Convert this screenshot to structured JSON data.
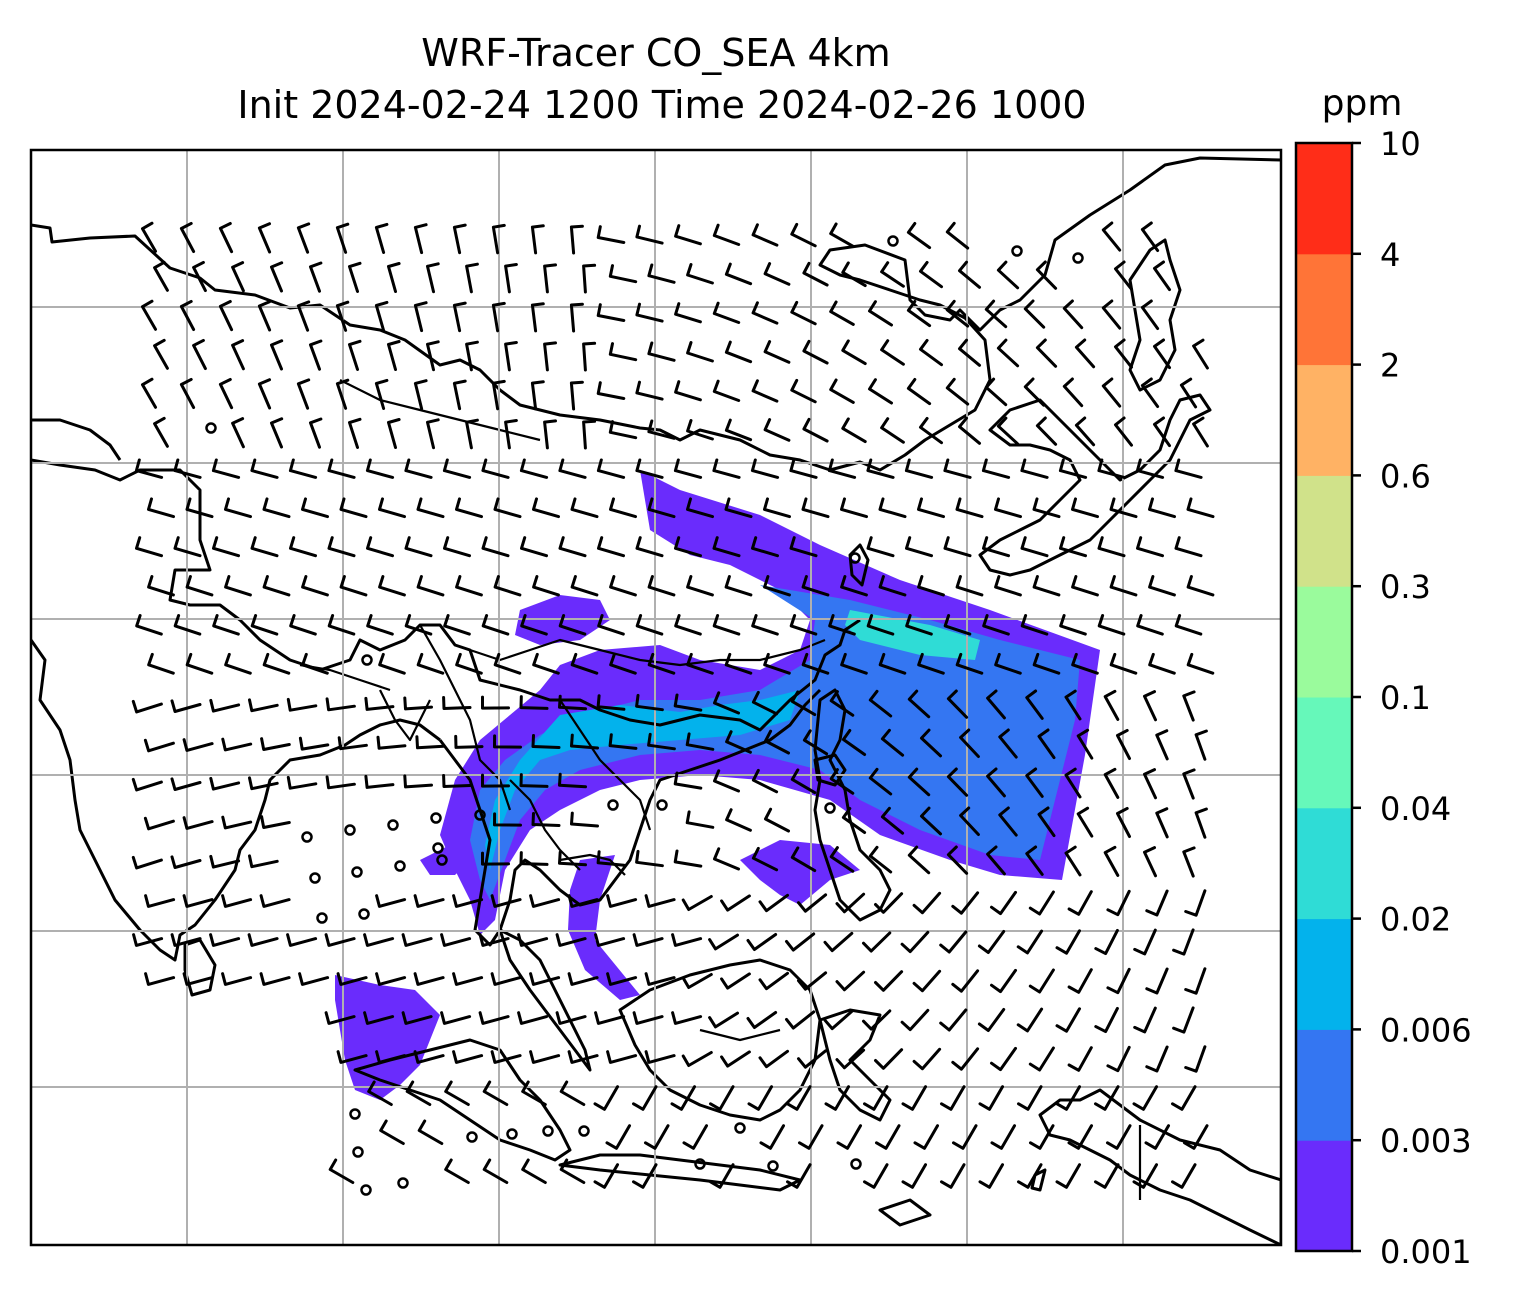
{
  "title": {
    "line1": "WRF-Tracer CO_SEA 4km",
    "line2": "Init 2024-02-24 1200 Time 2024-02-26 1000"
  },
  "colorbar": {
    "unit": "ppm",
    "levels": [
      "0.001",
      "0.003",
      "0.006",
      "0.02",
      "0.04",
      "0.1",
      "0.3",
      "0.6",
      "2",
      "4",
      "10"
    ],
    "colors": [
      "#6a2cfc",
      "#3476f2",
      "#03b2ec",
      "#2fdcd6",
      "#66f8ba",
      "#9afb9c",
      "#d0e28a",
      "#ffb264",
      "#ff7437",
      "#ff2d18"
    ]
  },
  "colors": {
    "plume_low": "#6a2cfc",
    "plume_mid": "#3476f2",
    "plume_high": "#03b2ec",
    "plume_peak": "#2fdcd6",
    "gridline": "#b0b0b0",
    "coastline": "#000000"
  },
  "map": {
    "gridlines": true,
    "features": [
      "coastlines",
      "borders",
      "wind-barbs",
      "co-tracer-plume"
    ]
  }
}
